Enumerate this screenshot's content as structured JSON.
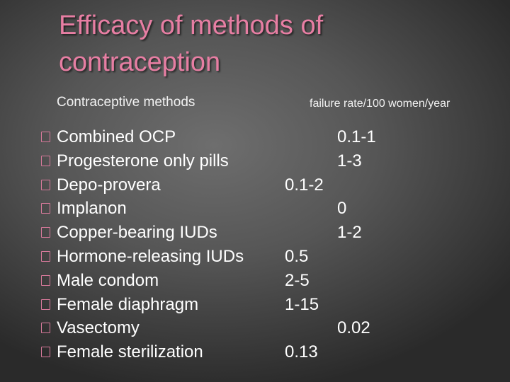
{
  "slide": {
    "title": "Efficacy of methods of contraception",
    "column_headers": {
      "methods": "Contraceptive methods",
      "rate": "failure rate/100 women/year"
    },
    "bullet_icon": "hollow-square-bullet-icon",
    "colors": {
      "title": "#e77ea3",
      "bullet": "#d97a9c",
      "text": "#ffffff"
    },
    "methods": [
      {
        "label": "Combined OCP",
        "rate": "0.1-1"
      },
      {
        "label": "Progesterone only pills",
        "rate": "1-3"
      },
      {
        "label": "Depo-provera",
        "rate": "0.1-2"
      },
      {
        "label": "Implanon",
        "rate": "0"
      },
      {
        "label": "Copper-bearing IUDs",
        "rate": "1-2"
      },
      {
        "label": "Hormone-releasing IUDs",
        "rate": "0.5"
      },
      {
        "label": "Male condom",
        "rate": "2-5"
      },
      {
        "label": "Female diaphragm",
        "rate": "1-15"
      },
      {
        "label": "Vasectomy",
        "rate": "0.02"
      },
      {
        "label": "Female sterilization",
        "rate": "0.13"
      }
    ]
  }
}
